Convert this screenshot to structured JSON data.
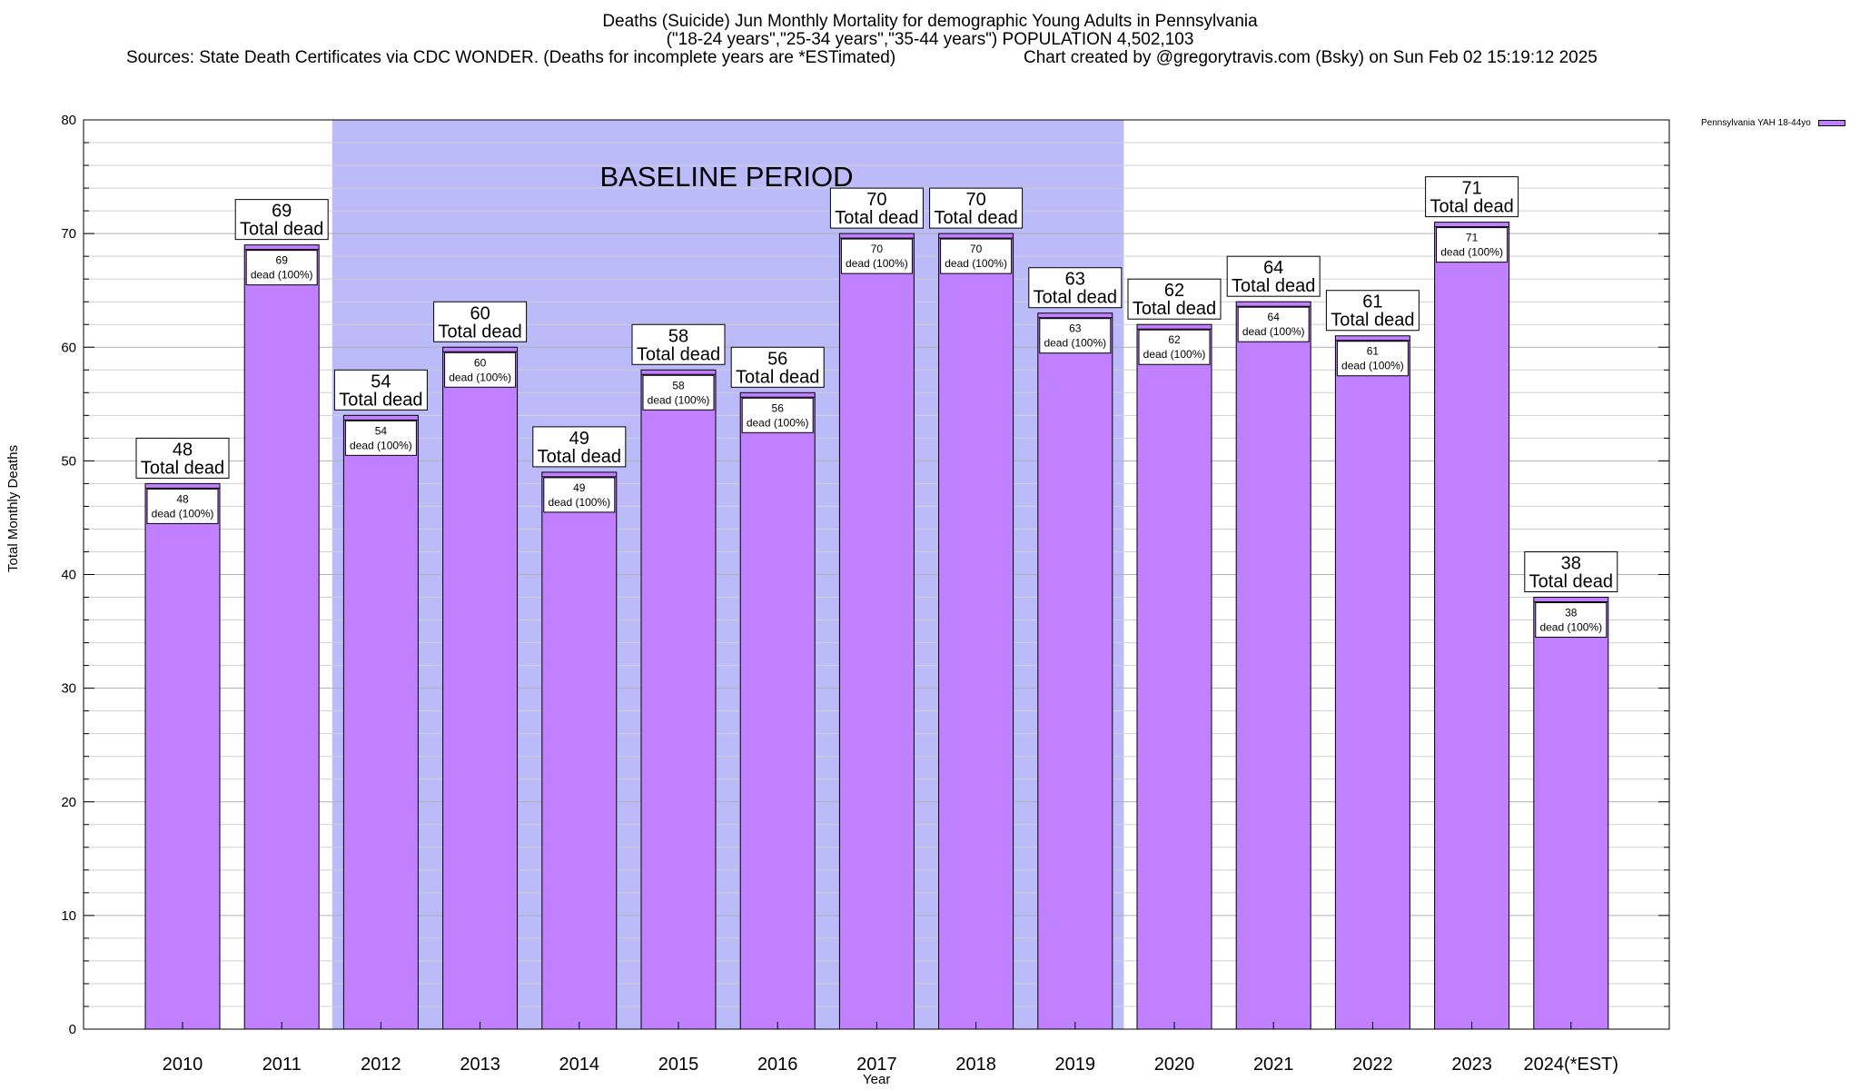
{
  "chart_data": {
    "type": "bar",
    "title": "Deaths (Suicide) Jun Monthly Mortality for demographic Young Adults in Pennsylvania",
    "subtitle": "(\"18-24 years\",\"25-34 years\",\"35-44 years\") POPULATION 4,502,103",
    "sources": "Sources: State Death Certificates via CDC WONDER. (Deaths for incomplete years are *ESTimated)",
    "credit": "Chart created by @gregorytravis.com (Bsky) on Sun Feb 02 15:19:12 2025",
    "xlabel": "Year",
    "ylabel": "Total Monthly Deaths",
    "ylim": [
      0,
      80
    ],
    "yticks": [
      0,
      10,
      20,
      30,
      40,
      50,
      60,
      70,
      80
    ],
    "grid": true,
    "legend_position": "top-right",
    "categories": [
      "2010",
      "2011",
      "2012",
      "2013",
      "2014",
      "2015",
      "2016",
      "2017",
      "2018",
      "2019",
      "2020",
      "2021",
      "2022",
      "2023",
      "2024(*EST)"
    ],
    "series": [
      {
        "name": "Pennsylvania YAH 18-44yo",
        "color": "#c080ff",
        "values": [
          48,
          69,
          54,
          60,
          49,
          58,
          56,
          70,
          70,
          63,
          62,
          64,
          61,
          71,
          38
        ]
      }
    ],
    "total_label_suffix": "Total dead",
    "inner_label_suffix": "dead (100%)",
    "baseline": {
      "label": "BASELINE PERIOD",
      "start_category": "2012",
      "end_category": "2019",
      "color": "#bbbbf9"
    }
  }
}
